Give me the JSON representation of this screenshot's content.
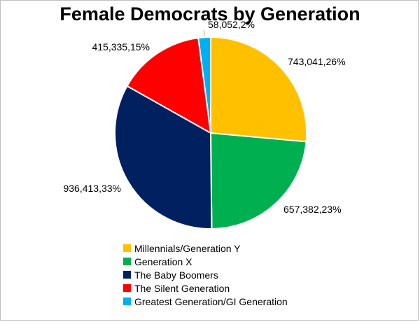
{
  "chart_data": {
    "type": "pie",
    "title": "Female Democrats by Generation",
    "slices": [
      {
        "name": "Millennials/Generation Y",
        "value": 743041,
        "value_label": "743,041",
        "percent_label": "26%",
        "color": "#FFC000"
      },
      {
        "name": "Generation X",
        "value": 657382,
        "value_label": "657,382",
        "percent_label": "23%",
        "color": "#00B050"
      },
      {
        "name": "The Baby Boomers",
        "value": 936413,
        "value_label": "936,413",
        "percent_label": "33%",
        "color": "#002060"
      },
      {
        "name": "The Silent Generation",
        "value": 415335,
        "value_label": "415,335",
        "percent_label": "15%",
        "color": "#FF0000"
      },
      {
        "name": "Greatest Generation/GI Generation",
        "value": 58052,
        "value_label": "58,052",
        "percent_label": "2%",
        "color": "#00B0F0"
      }
    ],
    "data_labels": [
      "743,041,26%",
      "657,382,23%",
      "936,413,33%",
      "415,335,15%",
      "58,052,2%"
    ],
    "start_angle": "12 o'clock, clockwise",
    "legend_position": "bottom"
  }
}
